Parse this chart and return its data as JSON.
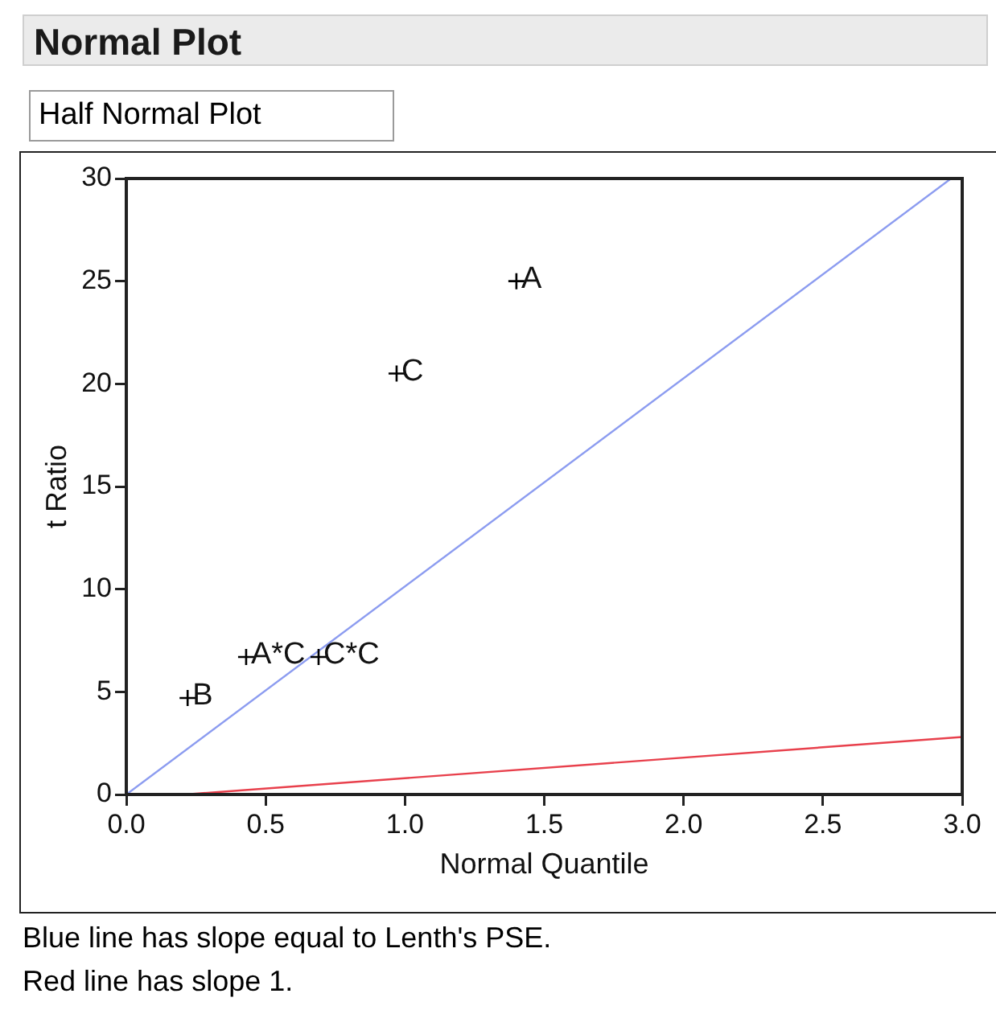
{
  "chart_data": {
    "type": "scatter",
    "title": "Normal Plot",
    "subtitle": "Half Normal Plot",
    "xlabel": "Normal Quantile",
    "ylabel": "t Ratio",
    "xlim": [
      0,
      3
    ],
    "xticks": [
      {
        "value": 0,
        "label": "0.0"
      },
      {
        "value": 0.5,
        "label": "0.5"
      },
      {
        "value": 1,
        "label": "1.0"
      },
      {
        "value": 1.5,
        "label": "1.5"
      },
      {
        "value": 2,
        "label": "2.0"
      },
      {
        "value": 2.5,
        "label": "2.5"
      },
      {
        "value": 3,
        "label": "3.0"
      }
    ],
    "ylim": [
      0,
      30
    ],
    "yticks": [
      0,
      5,
      10,
      15,
      20,
      25,
      30
    ],
    "grid": false,
    "legend": false,
    "marker": "cross",
    "series": [
      {
        "type": "scatter",
        "color": "#000000",
        "x": [
          1.4,
          0.97,
          0.43,
          0.69,
          0.22
        ],
        "values": [
          25,
          20.5,
          6.7,
          6.7,
          4.7
        ]
      },
      {
        "type": "line",
        "color": "#8c9cf0",
        "x": [
          0,
          2.96
        ],
        "values": [
          0,
          30
        ],
        "marker": "none"
      },
      {
        "type": "line",
        "color": "#e8404c",
        "x": [
          0.21,
          3
        ],
        "values": [
          0,
          2.8
        ],
        "marker": "none"
      }
    ],
    "annotations": [
      {
        "text": "A",
        "x": 1.4,
        "y": 25
      },
      {
        "text": "C",
        "x": 0.97,
        "y": 20.5
      },
      {
        "text": "A*C",
        "x": 0.43,
        "y": 6.7
      },
      {
        "text": "C*C",
        "x": 0.69,
        "y": 6.7
      },
      {
        "text": "B",
        "x": 0.22,
        "y": 4.7
      },
      "Blue line has slope equal to Lenth's PSE.",
      "Red line has slope 1."
    ]
  }
}
